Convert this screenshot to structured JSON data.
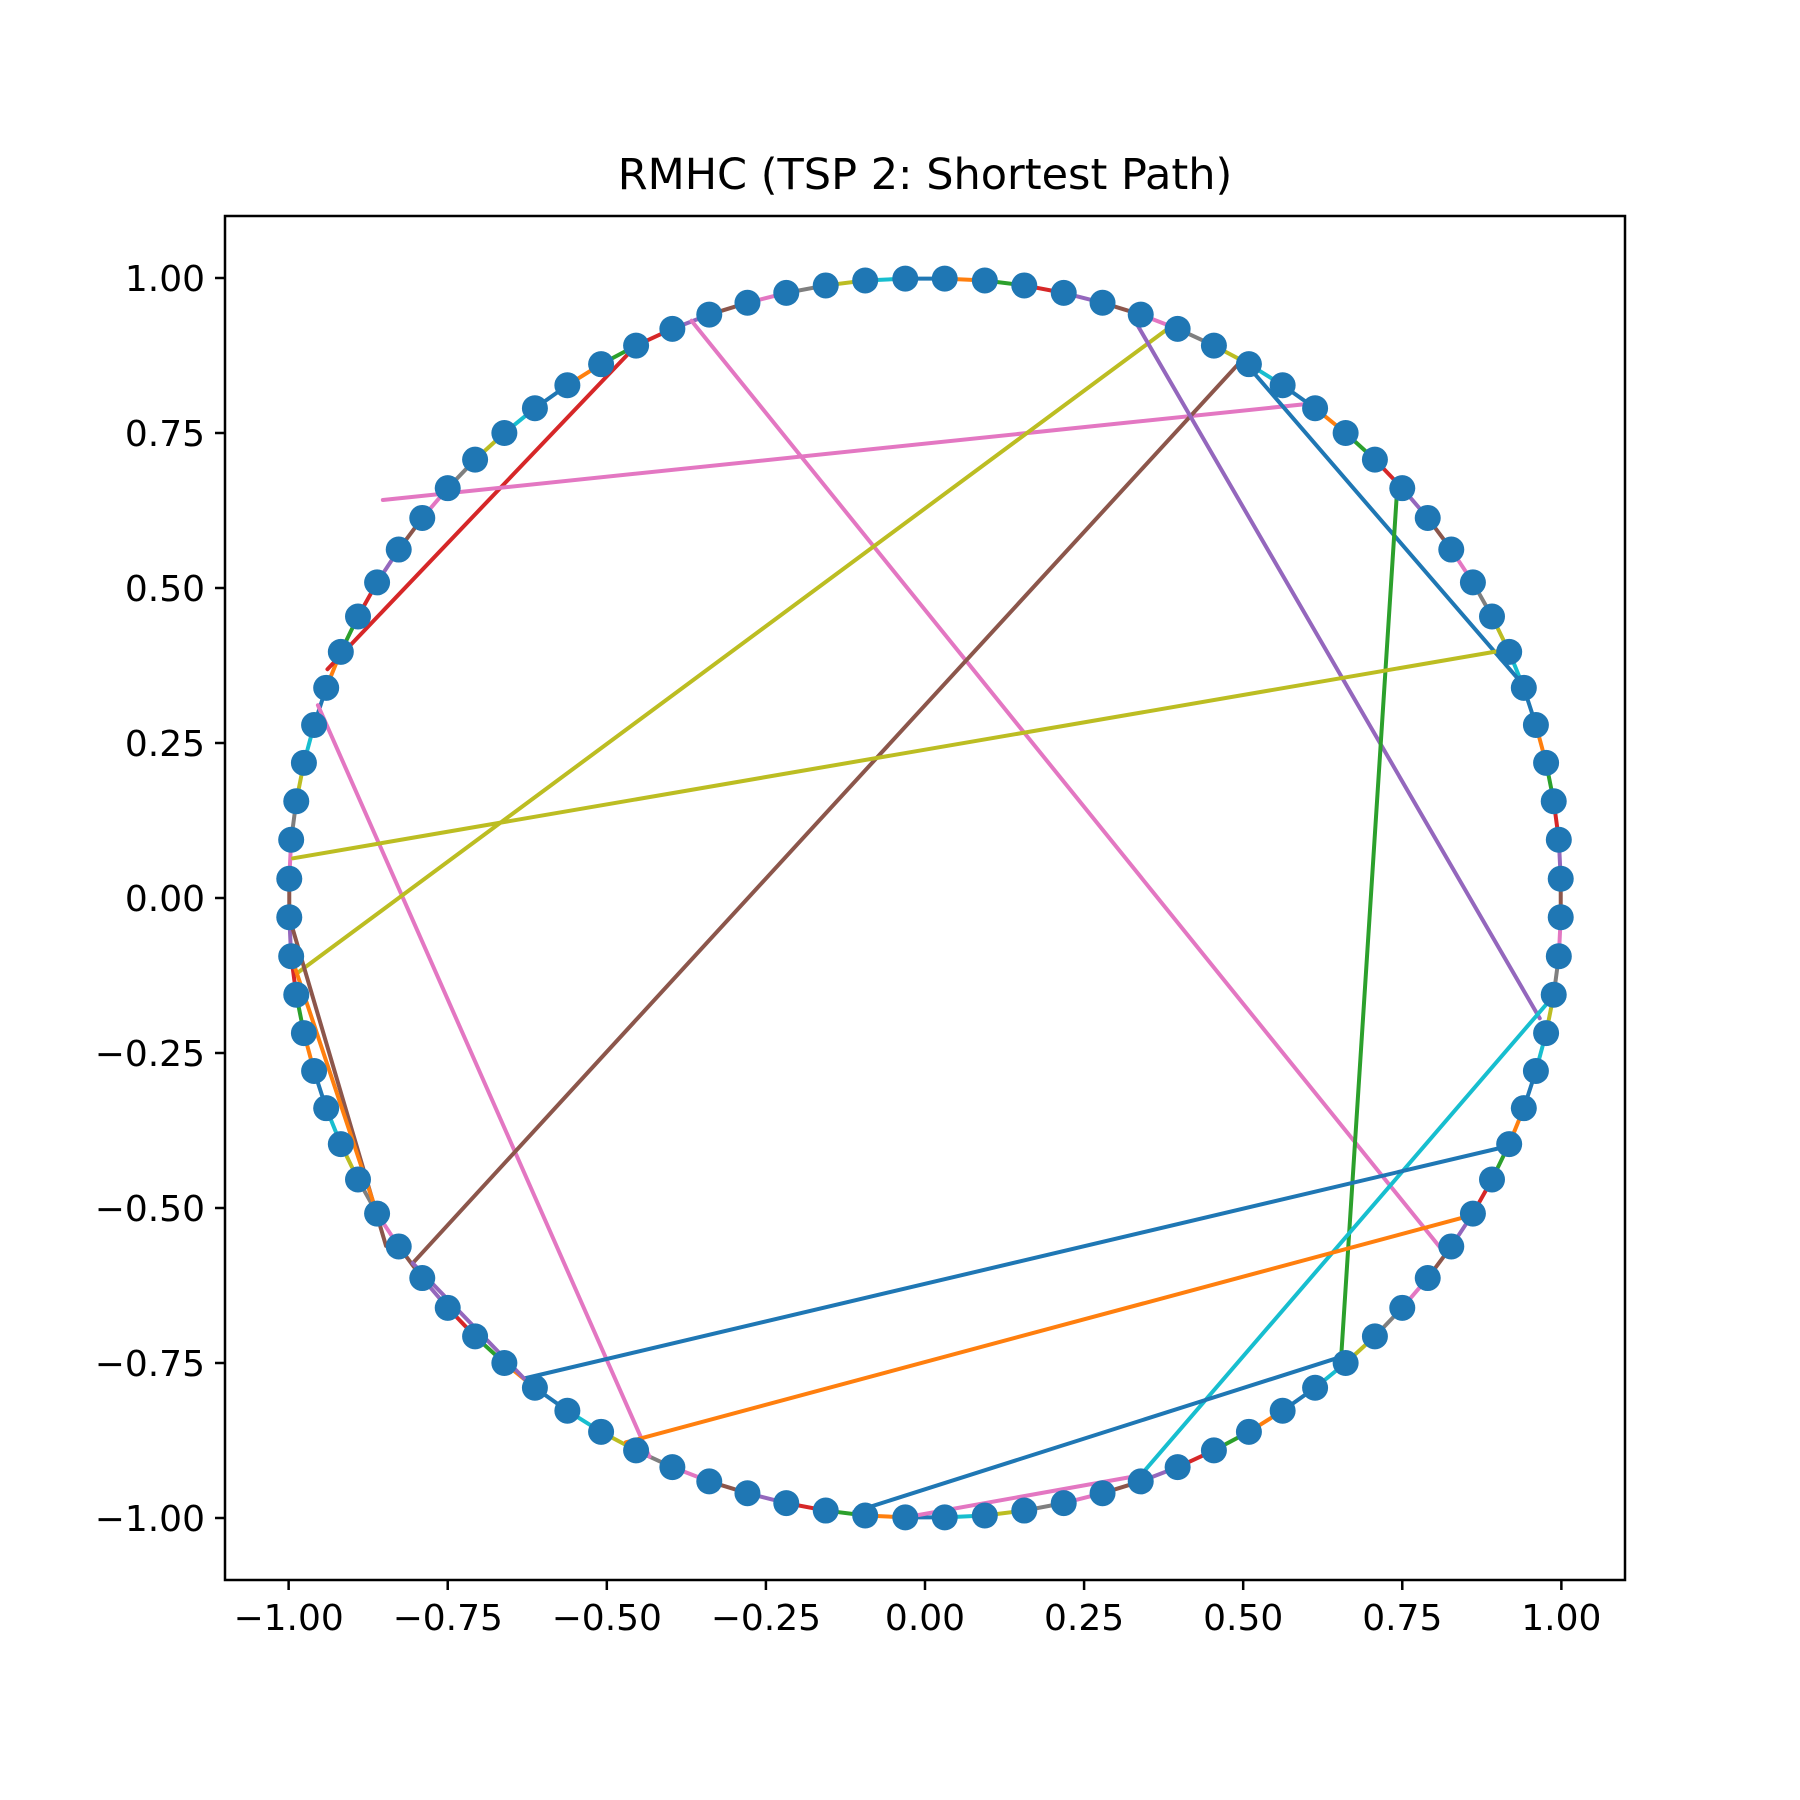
{
  "chart_data": {
    "type": "line",
    "title": "RMHC (TSP 2: Shortest Path)",
    "xlabel": "",
    "ylabel": "",
    "xlim": [
      -1.1,
      1.1
    ],
    "ylim": [
      -1.1,
      1.1
    ],
    "x_ticks": [
      "−1.00",
      "−0.75",
      "−0.50",
      "−0.25",
      "0.00",
      "0.25",
      "0.50",
      "0.75",
      "1.00"
    ],
    "y_ticks": [
      "1.00",
      "0.75",
      "0.50",
      "0.25",
      "0.00",
      "−0.25",
      "−0.50",
      "−0.75",
      "−1.00"
    ],
    "grid": false,
    "legend": "none",
    "marker_color": "#1f77b4",
    "series_colors": [
      "#1f77b4",
      "#ff7f0e",
      "#2ca02c",
      "#d62728",
      "#9467bd",
      "#8c564b",
      "#e377c2",
      "#7f7f7f",
      "#bcbd22",
      "#17becf"
    ],
    "points": [
      [
        -0.031,
        0.999
      ],
      [
        0.031,
        0.999
      ],
      [
        0.094,
        0.996
      ],
      [
        0.156,
        0.988
      ],
      [
        0.218,
        0.976
      ],
      [
        0.279,
        0.96
      ],
      [
        0.339,
        0.941
      ],
      [
        0.397,
        0.918
      ],
      [
        0.454,
        0.891
      ],
      [
        0.509,
        0.861
      ],
      [
        0.562,
        0.827
      ],
      [
        0.613,
        0.79
      ],
      [
        0.661,
        0.75
      ],
      [
        0.707,
        0.707
      ],
      [
        0.75,
        0.661
      ],
      [
        0.79,
        0.613
      ],
      [
        0.827,
        0.562
      ],
      [
        0.861,
        0.509
      ],
      [
        0.891,
        0.454
      ],
      [
        0.918,
        0.397
      ],
      [
        0.941,
        0.339
      ],
      [
        0.96,
        0.279
      ],
      [
        0.976,
        0.218
      ],
      [
        0.988,
        0.156
      ],
      [
        0.996,
        0.094
      ],
      [
        0.999,
        0.031
      ],
      [
        0.999,
        -0.031
      ],
      [
        0.996,
        -0.094
      ],
      [
        0.988,
        -0.156
      ],
      [
        0.976,
        -0.218
      ],
      [
        0.96,
        -0.279
      ],
      [
        0.941,
        -0.339
      ],
      [
        0.918,
        -0.397
      ],
      [
        0.891,
        -0.454
      ],
      [
        0.861,
        -0.509
      ],
      [
        0.827,
        -0.562
      ],
      [
        0.79,
        -0.613
      ],
      [
        0.75,
        -0.661
      ],
      [
        0.707,
        -0.707
      ],
      [
        0.661,
        -0.75
      ],
      [
        0.613,
        -0.79
      ],
      [
        0.562,
        -0.827
      ],
      [
        0.509,
        -0.861
      ],
      [
        0.454,
        -0.891
      ],
      [
        0.397,
        -0.918
      ],
      [
        0.339,
        -0.941
      ],
      [
        0.279,
        -0.96
      ],
      [
        0.218,
        -0.976
      ],
      [
        0.156,
        -0.988
      ],
      [
        0.094,
        -0.996
      ],
      [
        0.031,
        -0.999
      ],
      [
        -0.031,
        -0.999
      ],
      [
        -0.094,
        -0.996
      ],
      [
        -0.156,
        -0.988
      ],
      [
        -0.218,
        -0.976
      ],
      [
        -0.279,
        -0.96
      ],
      [
        -0.339,
        -0.941
      ],
      [
        -0.397,
        -0.918
      ],
      [
        -0.454,
        -0.891
      ],
      [
        -0.509,
        -0.861
      ],
      [
        -0.562,
        -0.827
      ],
      [
        -0.613,
        -0.79
      ],
      [
        -0.661,
        -0.75
      ],
      [
        -0.707,
        -0.707
      ],
      [
        -0.75,
        -0.661
      ],
      [
        -0.79,
        -0.613
      ],
      [
        -0.827,
        -0.562
      ],
      [
        -0.861,
        -0.509
      ],
      [
        -0.891,
        -0.454
      ],
      [
        -0.918,
        -0.397
      ],
      [
        -0.941,
        -0.339
      ],
      [
        -0.96,
        -0.279
      ],
      [
        -0.976,
        -0.218
      ],
      [
        -0.988,
        -0.156
      ],
      [
        -0.996,
        -0.094
      ],
      [
        -0.999,
        -0.031
      ],
      [
        -0.999,
        0.031
      ],
      [
        -0.996,
        0.094
      ],
      [
        -0.988,
        0.156
      ],
      [
        -0.976,
        0.218
      ],
      [
        -0.96,
        0.279
      ],
      [
        -0.941,
        0.339
      ],
      [
        -0.918,
        0.397
      ],
      [
        -0.891,
        0.454
      ],
      [
        -0.861,
        0.509
      ],
      [
        -0.827,
        0.562
      ],
      [
        -0.79,
        0.613
      ],
      [
        -0.75,
        0.661
      ],
      [
        -0.707,
        0.707
      ],
      [
        -0.661,
        0.75
      ],
      [
        -0.613,
        0.79
      ],
      [
        -0.562,
        0.827
      ],
      [
        -0.509,
        0.861
      ],
      [
        -0.454,
        0.891
      ],
      [
        -0.397,
        0.918
      ],
      [
        -0.339,
        0.941
      ],
      [
        -0.279,
        0.96
      ],
      [
        -0.218,
        0.976
      ],
      [
        -0.156,
        0.988
      ],
      [
        -0.094,
        0.996
      ]
    ],
    "segments": [
      {
        "from": [
          -0.939,
          0.369
        ],
        "to": [
          -0.454,
          0.891
        ],
        "color": "#d62728"
      },
      {
        "from": [
          -0.852,
          0.642
        ],
        "to": [
          0.602,
          0.797
        ],
        "color": "#e377c2"
      },
      {
        "from": [
          -0.367,
          0.931
        ],
        "to": [
          0.812,
          -0.567
        ],
        "color": "#e377c2"
      },
      {
        "from": [
          -0.954,
          0.311
        ],
        "to": [
          -0.433,
          -0.901
        ],
        "color": "#e377c2"
      },
      {
        "from": [
          0.384,
          0.92
        ],
        "to": [
          -0.985,
          -0.12
        ],
        "color": "#bcbd22"
      },
      {
        "from": [
          0.493,
          0.862
        ],
        "to": [
          -0.805,
          -0.589
        ],
        "color": "#8c564b"
      },
      {
        "from": [
          0.322,
          0.945
        ],
        "to": [
          0.966,
          -0.194
        ],
        "color": "#9467bd"
      },
      {
        "from": [
          0.51,
          0.855
        ],
        "to": [
          0.939,
          0.345
        ],
        "color": "#1f77b4"
      },
      {
        "from": [
          0.742,
          0.66
        ],
        "to": [
          0.654,
          -0.74
        ],
        "color": "#2ca02c"
      },
      {
        "from": [
          0.917,
          0.401
        ],
        "to": [
          -0.993,
          0.064
        ],
        "color": "#bcbd22"
      },
      {
        "from": [
          0.986,
          -0.16
        ],
        "to": [
          0.339,
          -0.931
        ],
        "color": "#17becf"
      },
      {
        "from": [
          0.913,
          -0.401
        ],
        "to": [
          -0.63,
          -0.775
        ],
        "color": "#1f77b4"
      },
      {
        "from": [
          0.858,
          -0.512
        ],
        "to": [
          -0.47,
          -0.878
        ],
        "color": "#ff7f0e"
      },
      {
        "from": [
          0.654,
          -0.74
        ],
        "to": [
          -0.111,
          -0.99
        ],
        "color": "#1f77b4"
      },
      {
        "from": [
          0.339,
          -0.931
        ],
        "to": [
          -0.031,
          -0.999
        ],
        "color": "#e377c2"
      },
      {
        "from": [
          -0.999,
          -0.031
        ],
        "to": [
          -0.847,
          -0.561
        ],
        "color": "#8c564b"
      },
      {
        "from": [
          -0.996,
          -0.094
        ],
        "to": [
          -0.861,
          -0.509
        ],
        "color": "#ff7f0e"
      },
      {
        "from": [
          -0.805,
          -0.589
        ],
        "to": [
          -0.63,
          -0.775
        ],
        "color": "#9467bd"
      }
    ]
  }
}
